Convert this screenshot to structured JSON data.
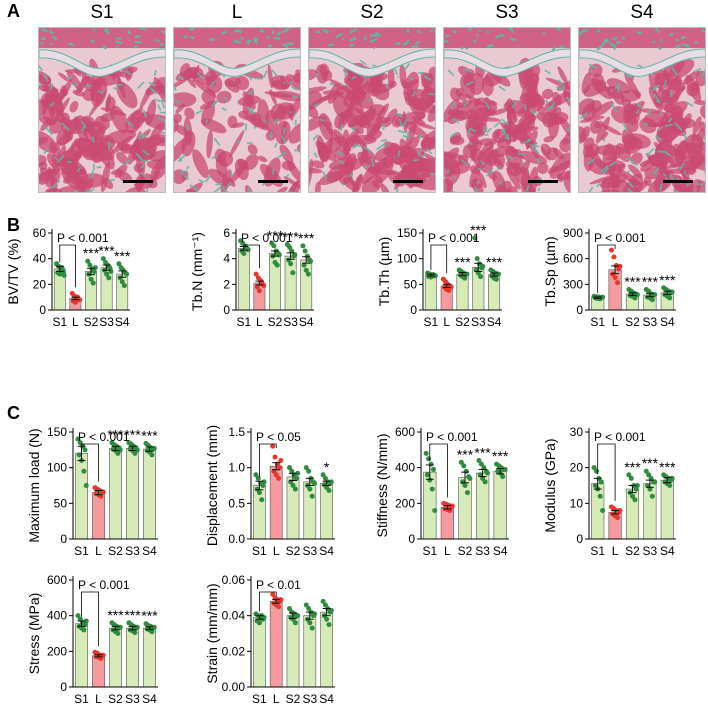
{
  "panel_labels": {
    "a": "A",
    "b": "B",
    "c": "C"
  },
  "histology": {
    "labels": [
      "S1",
      "L",
      "S2",
      "S3",
      "S4"
    ],
    "colors": {
      "background": "#e9c9d2",
      "bone": "#c94a72",
      "cartilage": "#5fb7a8",
      "growth_plate": "#e8dde4"
    }
  },
  "colors": {
    "control_bar": "#d6ebb8",
    "lesion_bar": "#f59ba0",
    "control_dot": "#2e8b3f",
    "lesion_dot": "#e8372a"
  },
  "chart_data": [
    {
      "type": "bar",
      "title": "",
      "ylabel": "BV/TV (%)",
      "categories": [
        "S1",
        "L",
        "S2",
        "S3",
        "S4"
      ],
      "values": [
        32,
        9,
        30,
        33,
        28
      ],
      "errors": [
        2,
        1,
        2.5,
        2,
        2.5
      ],
      "ylim": [
        0,
        60
      ],
      "yticks": [
        0,
        20,
        40,
        60
      ],
      "significance": [
        "",
        "",
        "***",
        "***",
        "***"
      ],
      "pvalue": "P < 0.001",
      "points": [
        [
          36,
          34,
          32,
          30,
          29,
          28,
          33,
          27
        ],
        [
          13,
          11,
          9,
          8,
          7,
          6,
          10,
          8
        ],
        [
          38,
          35,
          32,
          30,
          28,
          24,
          21,
          33
        ],
        [
          40,
          37,
          35,
          33,
          31,
          28,
          25,
          30
        ],
        [
          36,
          33,
          31,
          29,
          25,
          22,
          19,
          28
        ]
      ]
    },
    {
      "type": "bar",
      "title": "",
      "ylabel": "Tb.N (mm⁻¹)",
      "categories": [
        "S1",
        "L",
        "S2",
        "S3",
        "S4"
      ],
      "values": [
        4.8,
        2.1,
        4.4,
        4.2,
        3.9
      ],
      "errors": [
        0.15,
        0.15,
        0.2,
        0.25,
        0.25
      ],
      "ylim": [
        0,
        6
      ],
      "yticks": [
        0,
        2,
        4,
        6
      ],
      "significance": [
        "",
        "",
        "***",
        "***",
        "***"
      ],
      "pvalue": "P < 0.001",
      "points": [
        [
          5.4,
          5.2,
          5.0,
          4.8,
          4.6,
          4.4,
          4.9,
          4.7
        ],
        [
          2.8,
          2.5,
          2.3,
          2.0,
          1.8,
          1.5,
          2.2,
          1.9
        ],
        [
          5.2,
          5.0,
          4.6,
          4.4,
          4.2,
          3.7,
          3.5,
          4.3
        ],
        [
          5.1,
          4.9,
          4.6,
          4.2,
          3.9,
          3.6,
          2.9,
          4.3
        ],
        [
          5.0,
          4.6,
          4.2,
          3.9,
          3.5,
          3.1,
          2.8,
          3.8
        ]
      ]
    },
    {
      "type": "bar",
      "title": "",
      "ylabel": "Tb.Th (µm)",
      "categories": [
        "S1",
        "L",
        "S2",
        "S3",
        "S4"
      ],
      "values": [
        68,
        47,
        70,
        83,
        69
      ],
      "errors": [
        2,
        3,
        3,
        8,
        3
      ],
      "ylim": [
        0,
        150
      ],
      "yticks": [
        0,
        50,
        100,
        150
      ],
      "significance": [
        "",
        "",
        "***",
        "***",
        "***"
      ],
      "pvalue": "P < 0.001",
      "points": [
        [
          72,
          70,
          68,
          66,
          65,
          64,
          69,
          67
        ],
        [
          60,
          55,
          50,
          47,
          44,
          40,
          38,
          45
        ],
        [
          78,
          75,
          72,
          70,
          68,
          65,
          62,
          70
        ],
        [
          140,
          100,
          90,
          82,
          78,
          72,
          65,
          85
        ],
        [
          78,
          75,
          72,
          70,
          66,
          62,
          60,
          70
        ]
      ]
    },
    {
      "type": "bar",
      "title": "",
      "ylabel": "Tb.Sp (µm)",
      "categories": [
        "S1",
        "L",
        "S2",
        "S3",
        "S4"
      ],
      "values": [
        145,
        470,
        185,
        175,
        200
      ],
      "errors": [
        8,
        45,
        15,
        20,
        20
      ],
      "ylim": [
        0,
        900
      ],
      "yticks": [
        0,
        300,
        600,
        900
      ],
      "significance": [
        "",
        "",
        "***",
        "***",
        "***"
      ],
      "pvalue": "P < 0.001",
      "points": [
        [
          160,
          155,
          150,
          145,
          140,
          135,
          130,
          150
        ],
        [
          700,
          620,
          520,
          480,
          420,
          380,
          320,
          510
        ],
        [
          240,
          220,
          200,
          185,
          170,
          160,
          140,
          180
        ],
        [
          240,
          220,
          190,
          170,
          150,
          140,
          120,
          180
        ],
        [
          260,
          240,
          220,
          200,
          180,
          160,
          140,
          210
        ]
      ]
    },
    {
      "type": "bar",
      "title": "",
      "ylabel": "Maximum load (N)",
      "categories": [
        "S1",
        "L",
        "S2",
        "S3",
        "S4"
      ],
      "values": [
        120,
        65,
        127,
        127,
        126
      ],
      "errors": [
        10,
        3,
        3,
        3,
        3
      ],
      "ylim": [
        0,
        150
      ],
      "yticks": [
        0,
        50,
        100,
        150
      ],
      "significance": [
        "",
        "",
        "***",
        "***",
        "***"
      ],
      "pvalue": "P < 0.001",
      "points": [
        [
          140,
          135,
          130,
          125,
          118,
          110,
          95,
          75
        ],
        [
          72,
          70,
          68,
          66,
          64,
          62,
          60,
          66
        ],
        [
          135,
          132,
          130,
          128,
          126,
          124,
          120,
          125
        ],
        [
          135,
          133,
          130,
          128,
          126,
          124,
          120,
          125
        ],
        [
          134,
          131,
          128,
          126,
          124,
          122,
          118,
          127
        ]
      ]
    },
    {
      "type": "bar",
      "title": "",
      "ylabel": "Displacement (mm)",
      "categories": [
        "S1",
        "L",
        "S2",
        "S3",
        "S4"
      ],
      "values": [
        0.75,
        1.02,
        0.87,
        0.8,
        0.78
      ],
      "errors": [
        0.06,
        0.05,
        0.05,
        0.05,
        0.03
      ],
      "ylim": [
        0,
        1.5
      ],
      "yticks": [
        0,
        0.5,
        1.0,
        1.5
      ],
      "significance": [
        "",
        "",
        "",
        "",
        "*"
      ],
      "pvalue": "P < 0.05",
      "points": [
        [
          0.9,
          0.85,
          0.78,
          0.75,
          0.7,
          0.65,
          0.55,
          0.8
        ],
        [
          1.3,
          1.15,
          1.05,
          1.0,
          0.95,
          0.9,
          0.85,
          1.1
        ],
        [
          1.0,
          0.95,
          0.9,
          0.85,
          0.8,
          0.75,
          0.7,
          0.92
        ],
        [
          1.0,
          0.95,
          0.85,
          0.8,
          0.75,
          0.7,
          0.6,
          0.78
        ],
        [
          0.9,
          0.85,
          0.8,
          0.78,
          0.76,
          0.72,
          0.68,
          0.8
        ]
      ]
    },
    {
      "type": "bar",
      "title": "",
      "ylabel": "Stiffness (N/mm)",
      "categories": [
        "S1",
        "L",
        "S2",
        "S3",
        "S4"
      ],
      "values": [
        375,
        178,
        345,
        370,
        380
      ],
      "errors": [
        40,
        10,
        30,
        20,
        15
      ],
      "ylim": [
        0,
        600
      ],
      "yticks": [
        0,
        200,
        400,
        600
      ],
      "significance": [
        "",
        "",
        "***",
        "***",
        "***"
      ],
      "pvalue": "P < 0.001",
      "points": [
        [
          480,
          450,
          420,
          390,
          360,
          330,
          280,
          160
        ],
        [
          200,
          195,
          190,
          180,
          170,
          165,
          160,
          185
        ],
        [
          430,
          410,
          380,
          350,
          320,
          300,
          260,
          340
        ],
        [
          440,
          420,
          400,
          380,
          360,
          340,
          320,
          370
        ],
        [
          420,
          410,
          400,
          390,
          380,
          370,
          350,
          390
        ]
      ]
    },
    {
      "type": "bar",
      "title": "",
      "ylabel": "Modulus (GPa)",
      "categories": [
        "S1",
        "L",
        "S2",
        "S3",
        "S4"
      ],
      "values": [
        15.5,
        7.5,
        14,
        15.5,
        16.5
      ],
      "errors": [
        1.5,
        0.5,
        1,
        1,
        0.7
      ],
      "ylim": [
        0,
        30
      ],
      "yticks": [
        0,
        10,
        20,
        30
      ],
      "significance": [
        "",
        "",
        "***",
        "***",
        "***"
      ],
      "pvalue": "P < 0.001",
      "points": [
        [
          20,
          19,
          17,
          16,
          15,
          14,
          12,
          8
        ],
        [
          9,
          8.5,
          8,
          7.5,
          7,
          6.5,
          6,
          8
        ],
        [
          18,
          17,
          15,
          14,
          13,
          12,
          11,
          15
        ],
        [
          19,
          18,
          17,
          16,
          15,
          14,
          12,
          16
        ],
        [
          18,
          17.5,
          17,
          16.5,
          16,
          15.5,
          15,
          17
        ]
      ]
    },
    {
      "type": "bar",
      "title": "",
      "ylabel": "Stress (MPa)",
      "categories": [
        "S1",
        "L",
        "S2",
        "S3",
        "S4"
      ],
      "values": [
        355,
        175,
        330,
        330,
        330
      ],
      "errors": [
        15,
        6,
        10,
        10,
        8
      ],
      "ylim": [
        0,
        600
      ],
      "yticks": [
        0,
        200,
        400,
        600
      ],
      "significance": [
        "",
        "",
        "***",
        "***",
        "***"
      ],
      "pvalue": "P < 0.001",
      "points": [
        [
          400,
          380,
          360,
          350,
          340,
          330,
          320,
          370
        ],
        [
          195,
          190,
          180,
          175,
          170,
          165,
          160,
          178
        ],
        [
          360,
          350,
          340,
          330,
          320,
          310,
          300,
          335
        ],
        [
          360,
          350,
          340,
          330,
          320,
          315,
          305,
          335
        ],
        [
          355,
          345,
          340,
          330,
          325,
          320,
          310,
          335
        ]
      ]
    },
    {
      "type": "bar",
      "title": "",
      "ylabel": "Strain (mm/mm)",
      "categories": [
        "S1",
        "L",
        "S2",
        "S3",
        "S4"
      ],
      "values": [
        0.039,
        0.048,
        0.04,
        0.04,
        0.042
      ],
      "errors": [
        0.001,
        0.001,
        0.0015,
        0.002,
        0.002
      ],
      "ylim": [
        0,
        0.06
      ],
      "yticks": [
        0,
        0.02,
        0.04,
        0.06
      ],
      "significance": [
        "",
        "",
        "",
        "",
        ""
      ],
      "pvalue": "P < 0.01",
      "points": [
        [
          0.041,
          0.04,
          0.039,
          0.038,
          0.037,
          0.036,
          0.04,
          0.039
        ],
        [
          0.052,
          0.05,
          0.049,
          0.048,
          0.047,
          0.046,
          0.045,
          0.049
        ],
        [
          0.044,
          0.042,
          0.041,
          0.04,
          0.039,
          0.038,
          0.036,
          0.04
        ],
        [
          0.046,
          0.044,
          0.042,
          0.04,
          0.038,
          0.036,
          0.033,
          0.041
        ],
        [
          0.048,
          0.046,
          0.044,
          0.042,
          0.04,
          0.038,
          0.035,
          0.043
        ]
      ]
    }
  ]
}
